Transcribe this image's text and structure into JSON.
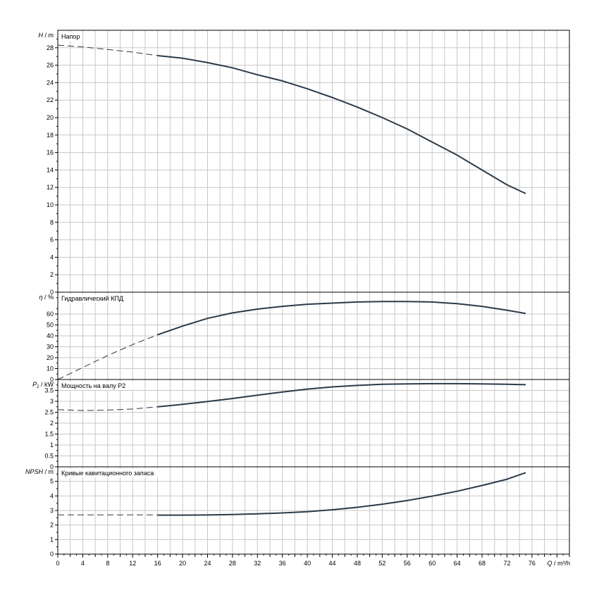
{
  "chart_data": [
    {
      "type": "line",
      "title": "Напор",
      "ylabel_main": "H",
      "ylabel_unit": "m",
      "ylim": [
        0,
        30
      ],
      "yticks": [
        0,
        2,
        4,
        6,
        8,
        10,
        12,
        14,
        16,
        18,
        20,
        22,
        24,
        26,
        28
      ],
      "ytick_labels": [
        "0",
        "2",
        "4",
        "6",
        "8",
        "10",
        "12",
        "14",
        "16",
        "18",
        "20",
        "22",
        "24",
        "26",
        "28"
      ],
      "series": [
        {
          "style": "dashed",
          "x": [
            0,
            4,
            8,
            12,
            16
          ],
          "y": [
            28.3,
            28.1,
            27.8,
            27.5,
            27.1
          ]
        },
        {
          "style": "solid",
          "x": [
            16,
            20,
            24,
            28,
            32,
            36,
            40,
            44,
            48,
            52,
            56,
            60,
            64,
            68,
            72,
            75
          ],
          "y": [
            27.1,
            26.8,
            26.3,
            25.7,
            24.9,
            24.2,
            23.3,
            22.3,
            21.2,
            20.0,
            18.7,
            17.2,
            15.7,
            14.0,
            12.3,
            11.3
          ]
        }
      ]
    },
    {
      "type": "line",
      "title": "Гидравлический КПД",
      "ylabel_main": "η",
      "ylabel_unit": "%",
      "ylim": [
        0,
        80
      ],
      "yticks": [
        0,
        10,
        20,
        30,
        40,
        50,
        60
      ],
      "ytick_labels": [
        "0",
        "10",
        "20",
        "30",
        "40",
        "50",
        "60"
      ],
      "series": [
        {
          "style": "dashed",
          "x": [
            0,
            4,
            8,
            12,
            16
          ],
          "y": [
            0,
            11,
            22,
            32,
            41
          ]
        },
        {
          "style": "solid",
          "x": [
            16,
            20,
            24,
            28,
            32,
            36,
            40,
            44,
            48,
            52,
            56,
            60,
            64,
            68,
            72,
            75
          ],
          "y": [
            41,
            49,
            56,
            61,
            64.5,
            67,
            69,
            70,
            71,
            71.5,
            71.5,
            71,
            69.5,
            67,
            63.5,
            60.5
          ]
        }
      ]
    },
    {
      "type": "line",
      "title": "Мощность на валу P2",
      "ylabel_main": "P",
      "ylabel_sub": "2",
      "ylabel_unit": "kW",
      "ylim": [
        0,
        4
      ],
      "yticks": [
        0,
        0.5,
        1,
        1.5,
        2,
        2.5,
        3,
        3.5
      ],
      "ytick_labels": [
        "0",
        "0.5",
        "1",
        "1.5",
        "2",
        "2.5",
        "3",
        "3.5"
      ],
      "series": [
        {
          "style": "dashed",
          "x": [
            0,
            4,
            8,
            12,
            16
          ],
          "y": [
            2.62,
            2.58,
            2.6,
            2.65,
            2.75
          ]
        },
        {
          "style": "solid",
          "x": [
            16,
            20,
            24,
            28,
            32,
            36,
            40,
            44,
            48,
            52,
            56,
            60,
            64,
            68,
            72,
            75
          ],
          "y": [
            2.75,
            2.86,
            2.99,
            3.13,
            3.28,
            3.43,
            3.56,
            3.66,
            3.73,
            3.78,
            3.8,
            3.81,
            3.81,
            3.8,
            3.78,
            3.76
          ]
        }
      ]
    },
    {
      "type": "line",
      "title": "Кривые кавитационного запаса",
      "ylabel_main": "NPSH",
      "ylabel_unit": "m",
      "ylim": [
        0,
        6
      ],
      "yticks": [
        0,
        1,
        2,
        3,
        4,
        5
      ],
      "ytick_labels": [
        "0",
        "1",
        "2",
        "3",
        "4",
        "5"
      ],
      "series": [
        {
          "style": "dashed",
          "x": [
            0,
            16
          ],
          "y": [
            2.7,
            2.7
          ]
        },
        {
          "style": "solid",
          "x": [
            16,
            20,
            24,
            28,
            32,
            36,
            40,
            44,
            48,
            52,
            56,
            60,
            64,
            68,
            72,
            75
          ],
          "y": [
            2.68,
            2.68,
            2.69,
            2.72,
            2.77,
            2.83,
            2.92,
            3.05,
            3.22,
            3.43,
            3.68,
            3.98,
            4.32,
            4.72,
            5.15,
            5.6
          ]
        }
      ]
    }
  ],
  "x_axis": {
    "label": "Q / m³/h",
    "xlim": [
      0,
      82
    ],
    "ticks": [
      0,
      4,
      8,
      12,
      16,
      20,
      24,
      28,
      32,
      36,
      40,
      44,
      48,
      52,
      56,
      60,
      64,
      68,
      72,
      76
    ],
    "tick_labels": [
      "0",
      "4",
      "8",
      "12",
      "16",
      "20",
      "24",
      "28",
      "32",
      "36",
      "40",
      "44",
      "48",
      "52",
      "56",
      "60",
      "64",
      "68",
      "72",
      "76"
    ]
  },
  "grid": true,
  "colors": {
    "curve": "#2b3a4a",
    "grid": "#c8c8c8",
    "frame": "#000000"
  }
}
